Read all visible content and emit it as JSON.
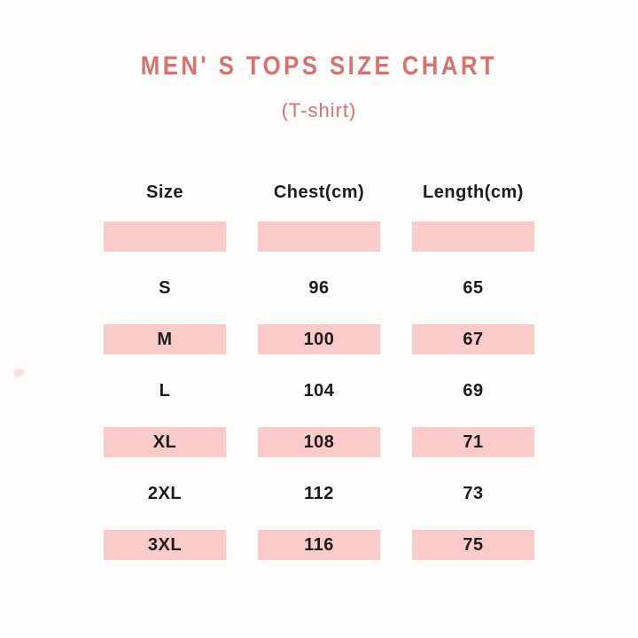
{
  "theme": {
    "bg": "#fefdfb",
    "accent": "#d9716f",
    "highlight": "#fbcbc9",
    "text": "#1c1c1c"
  },
  "header": {
    "title": "MEN' S TOPS SIZE CHART",
    "subtitle": "(T-shirt)"
  },
  "table": {
    "columns": [
      "Size",
      "Chest(cm)",
      "Length(cm)"
    ],
    "rows": [
      {
        "size": "",
        "chest": "",
        "length": "",
        "highlight": true
      },
      {
        "size": "S",
        "chest": "96",
        "length": "65",
        "highlight": false
      },
      {
        "size": "M",
        "chest": "100",
        "length": "67",
        "highlight": true
      },
      {
        "size": "L",
        "chest": "104",
        "length": "69",
        "highlight": false
      },
      {
        "size": "XL",
        "chest": "108",
        "length": "71",
        "highlight": true
      },
      {
        "size": "2XL",
        "chest": "112",
        "length": "73",
        "highlight": false
      },
      {
        "size": "3XL",
        "chest": "116",
        "length": "75",
        "highlight": true
      }
    ]
  }
}
